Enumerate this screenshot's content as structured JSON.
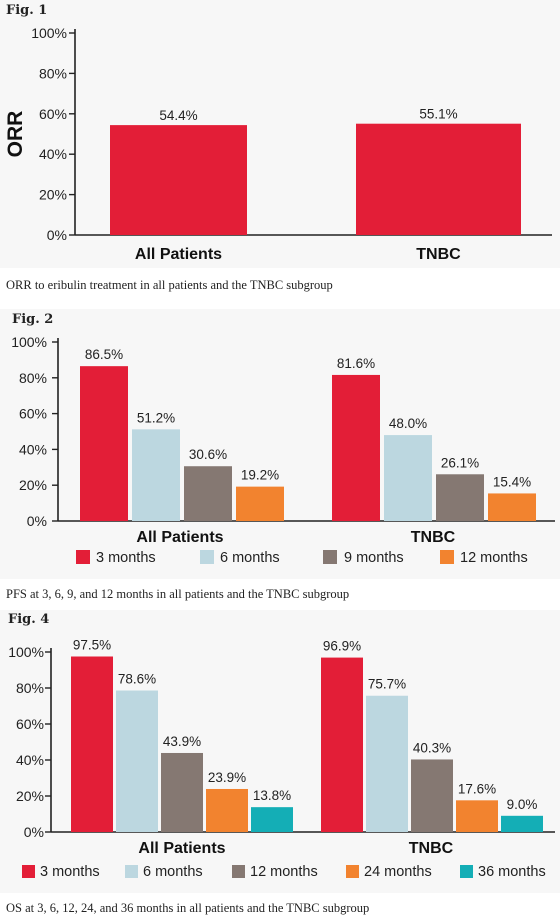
{
  "colors": {
    "red": "#e31e37",
    "light_blue": "#bcd7e0",
    "gray": "#857872",
    "orange": "#f2832f",
    "teal": "#14aeb6",
    "axis": "#222222"
  },
  "figures": [
    {
      "label": "Fig. 1",
      "caption": "ORR to eribulin treatment in all patients and the TNBC subgroup"
    },
    {
      "label": "Fig. 2",
      "caption": "PFS at 3, 6, 9, and 12 months in all patients and the TNBC subgroup"
    },
    {
      "label": "Fig. 4",
      "caption": "OS at 3, 6, 12, 24, and 36 months in all patients and the TNBC subgroup"
    }
  ],
  "chart_data": [
    {
      "type": "bar",
      "categories": [
        "All Patients",
        "TNBC"
      ],
      "series": [
        {
          "values": [
            54.4,
            55.1
          ],
          "labels": [
            "54.4%",
            "55.1%"
          ],
          "color": "#e31e37"
        }
      ],
      "ylabel": "ORR",
      "ylim": [
        0,
        100
      ],
      "yticks": [
        "0%",
        "20%",
        "40%",
        "60%",
        "80%",
        "100%"
      ],
      "grid": false
    },
    {
      "type": "bar",
      "categories": [
        "All Patients",
        "TNBC"
      ],
      "series": [
        {
          "name": "3 months",
          "values": [
            86.5,
            81.6
          ],
          "labels": [
            "86.5%",
            "81.6%"
          ],
          "color": "#e31e37"
        },
        {
          "name": "6 months",
          "values": [
            51.2,
            48.0
          ],
          "labels": [
            "51.2%",
            "48.0%"
          ],
          "color": "#bcd7e0"
        },
        {
          "name": "9 months",
          "values": [
            30.6,
            26.1
          ],
          "labels": [
            "30.6%",
            "26.1%"
          ],
          "color": "#857872"
        },
        {
          "name": "12 months",
          "values": [
            19.2,
            15.4
          ],
          "labels": [
            "19.2%",
            "15.4%"
          ],
          "color": "#f2832f"
        }
      ],
      "ylim": [
        0,
        100
      ],
      "yticks": [
        "0%",
        "20%",
        "40%",
        "60%",
        "80%",
        "100%"
      ],
      "legend": "bottom",
      "grid": false
    },
    {
      "type": "bar",
      "categories": [
        "All Patients",
        "TNBC"
      ],
      "series": [
        {
          "name": "3 months",
          "values": [
            97.5,
            96.9
          ],
          "labels": [
            "97.5%",
            "96.9%"
          ],
          "color": "#e31e37"
        },
        {
          "name": "6 months",
          "values": [
            78.6,
            75.7
          ],
          "labels": [
            "78.6%",
            "75.7%"
          ],
          "color": "#bcd7e0"
        },
        {
          "name": "12 months",
          "values": [
            43.9,
            40.3
          ],
          "labels": [
            "43.9%",
            "40.3%"
          ],
          "color": "#857872"
        },
        {
          "name": "24 months",
          "values": [
            23.9,
            17.6
          ],
          "labels": [
            "23.9%",
            "17.6%"
          ],
          "color": "#f2832f"
        },
        {
          "name": "36 months",
          "values": [
            13.8,
            9.0
          ],
          "labels": [
            "13.8%",
            "9.0%"
          ],
          "color": "#14aeb6"
        }
      ],
      "ylim": [
        0,
        100
      ],
      "yticks": [
        "0%",
        "20%",
        "40%",
        "60%",
        "80%",
        "100%"
      ],
      "legend": "bottom",
      "grid": false
    }
  ]
}
